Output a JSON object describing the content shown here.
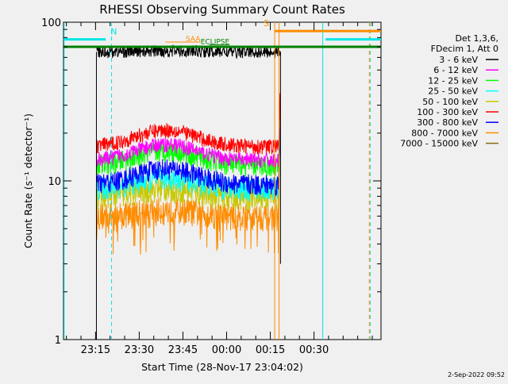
{
  "chart_data": {
    "type": "line",
    "title": "RHESSI Observing Summary Count Rates",
    "xlabel": "Start Time (28-Nov-17 23:04:02)",
    "ylabel": "Count Rate (s⁻¹ detector⁻¹)",
    "yscale": "log",
    "ylim": [
      1,
      100
    ],
    "xlim_minutes": [
      0,
      109
    ],
    "yticks": [
      {
        "value": 1,
        "label": "1"
      },
      {
        "value": 10,
        "label": "10"
      },
      {
        "value": 100,
        "label": "100"
      }
    ],
    "xticks": [
      {
        "minutes": 11,
        "label": "23:15"
      },
      {
        "minutes": 26,
        "label": "23:30"
      },
      {
        "minutes": 41,
        "label": "23:45"
      },
      {
        "minutes": 56,
        "label": "00:00"
      },
      {
        "minutes": 71,
        "label": "00:15"
      },
      {
        "minutes": 86,
        "label": "00:30"
      }
    ],
    "legend_header": [
      "Det 1,3,6,",
      "FDecim 1, Att 0"
    ],
    "legend_position": "right",
    "series": [
      {
        "name": "3 - 6 keV",
        "color": "#000000",
        "start": 11.3,
        "end": 74.5,
        "base": 65,
        "bump": 1.0,
        "noise": 0.04
      },
      {
        "name": "6 - 12 keV",
        "color": "#ff00ff",
        "start": 11.3,
        "end": 74.5,
        "base": 13.5,
        "bump": 3.5,
        "noise": 0.05
      },
      {
        "name": "12 - 25 keV",
        "color": "#00ff00",
        "start": 11.3,
        "end": 74.5,
        "base": 12.5,
        "bump": 3.0,
        "noise": 0.07
      },
      {
        "name": "25 - 50 keV",
        "color": "#00ffff",
        "start": 11.3,
        "end": 74.5,
        "base": 9.0,
        "bump": 1.5,
        "noise": 0.08
      },
      {
        "name": "50 - 100 keV",
        "color": "#c8c800",
        "start": 11.3,
        "end": 74.5,
        "base": 8.0,
        "bump": 1.0,
        "noise": 0.09
      },
      {
        "name": "100 - 300 keV",
        "color": "#ff0000",
        "start": 11.3,
        "end": 74.5,
        "base": 16.5,
        "bump": 4.5,
        "noise": 0.05
      },
      {
        "name": "300 - 800 keV",
        "color": "#0000ff",
        "start": 11.3,
        "end": 74.5,
        "base": 9.5,
        "bump": 2.5,
        "noise": 0.07
      },
      {
        "name": "800 - 7000 keV",
        "color": "#ff8c00",
        "start": 11.3,
        "end": 74.5,
        "base": 6.0,
        "bump": 0.6,
        "noise": 0.09
      },
      {
        "name": "7000 - 15000 keV",
        "color": "#8b6914",
        "start": 11.3,
        "end": 74.5,
        "base": 0,
        "bump": 0,
        "noise": 0
      }
    ],
    "annotations": {
      "flags": [
        {
          "label": "N",
          "color": "#00e5e5",
          "value": 78,
          "start": 0,
          "end": 14.5,
          "line": "solid"
        },
        {
          "label": "S",
          "color": "#ff8c00",
          "value": 88,
          "start": 72.5,
          "end": 109,
          "line": "solid"
        },
        {
          "label": "",
          "color": "#00e5e5",
          "value": 78,
          "start": 90,
          "end": 109,
          "line": "solid"
        },
        {
          "label": "",
          "color": "#008000",
          "value": 70,
          "start": 0,
          "end": 109,
          "line": "solid"
        },
        {
          "label": "SAA",
          "color": "#ff8c00",
          "value": 75,
          "start": 35,
          "end": 47,
          "line": "small"
        },
        {
          "label": "ECLIPSE",
          "color": "#008000",
          "value": 72,
          "start": 50,
          "end": 57,
          "line": "small"
        }
      ],
      "vlines": [
        {
          "minutes": 0.2,
          "color": "#00e5e5",
          "style": "solid"
        },
        {
          "minutes": 16.5,
          "color": "#00e5e5",
          "style": "dashed"
        },
        {
          "minutes": 72.5,
          "color": "#ff8c00",
          "style": "solid"
        },
        {
          "minutes": 74,
          "color": "#ff8c00",
          "style": "solid"
        },
        {
          "minutes": 89,
          "color": "#00e5e5",
          "style": "solid"
        },
        {
          "minutes": 105,
          "color": "#ff8c00",
          "style": "dashed"
        },
        {
          "minutes": 105.3,
          "color": "#00e5e5",
          "style": "dashed"
        }
      ]
    }
  },
  "footer": {
    "date": "2-Sep-2022 09:52"
  }
}
